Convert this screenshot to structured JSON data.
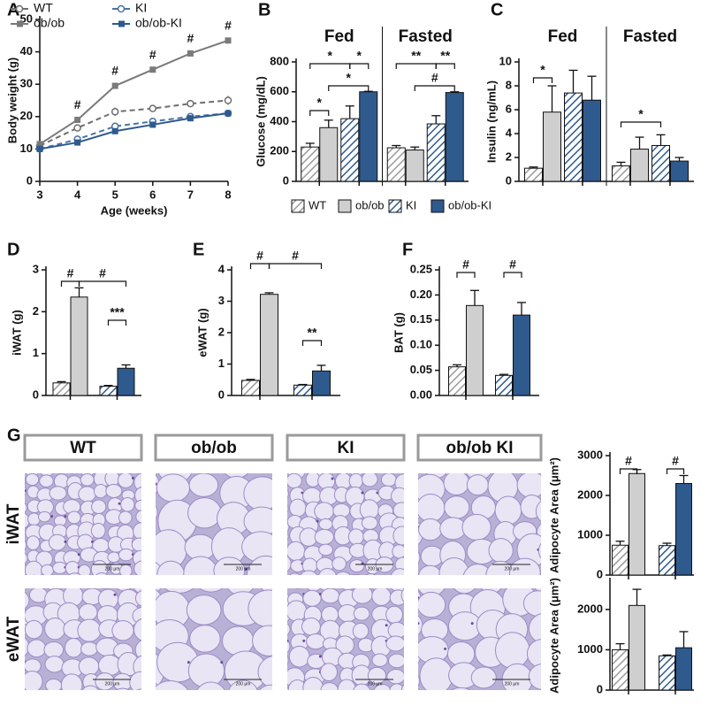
{
  "chart_data": [
    {
      "type": "line",
      "panel": "A",
      "xlabel": "Age (weeks)",
      "ylabel": "Body weight (g)",
      "x": [
        3,
        4,
        5,
        6,
        7,
        8
      ],
      "xlim": [
        3,
        8
      ],
      "xticks": [
        3,
        4,
        5,
        6,
        7,
        8
      ],
      "ylim": [
        0,
        50
      ],
      "yticks": [
        0,
        10,
        20,
        30,
        40,
        50
      ],
      "series": [
        {
          "name": "WT",
          "color": "#6e6e6e",
          "dashed": true,
          "marker": "circle-open",
          "values": [
            11,
            16.5,
            21.5,
            22.5,
            24,
            25
          ],
          "errors": [
            0.5,
            0.7,
            1.3,
            0.8,
            0.9,
            1.4
          ]
        },
        {
          "name": "ob/ob",
          "color": "#7a7a7a",
          "dashed": false,
          "marker": "square",
          "values": [
            11.5,
            19,
            29.5,
            34.5,
            39.5,
            43.5
          ],
          "errors": [
            0.4,
            0.6,
            0.5,
            0.6,
            0.6,
            0.8
          ]
        },
        {
          "name": "KI",
          "color": "#4a72a8",
          "dashed": true,
          "marker": "circle-open",
          "values": [
            10,
            13,
            17,
            18.5,
            20,
            21
          ],
          "errors": [
            0.4,
            0.5,
            0.6,
            0.6,
            0.6,
            0.7
          ]
        },
        {
          "name": "ob/ob-KI",
          "color": "#2e5a8e",
          "dashed": false,
          "marker": "square",
          "values": [
            10,
            12,
            15.5,
            17.5,
            19.5,
            21
          ],
          "errors": [
            0.4,
            0.5,
            0.6,
            0.5,
            0.6,
            0.6
          ]
        }
      ],
      "annotations": [
        {
          "text": "#"
        },
        {
          "text": "#"
        },
        {
          "text": "#"
        },
        {
          "text": "#"
        },
        {
          "text": "#"
        }
      ]
    },
    {
      "type": "bar",
      "panel": "B",
      "ylabel": "Glucose (mg/dL)",
      "groups": [
        "Fed",
        "Fasted"
      ],
      "ylim": [
        0,
        800
      ],
      "yticks": [
        0,
        200,
        400,
        600,
        800
      ],
      "legend": "bottom",
      "series": [
        {
          "name": "WT",
          "color": "#9a9a9a",
          "hatch": true,
          "values": [
            230,
            225
          ],
          "errors": [
            25,
            15
          ]
        },
        {
          "name": "ob/ob",
          "color": "#cfcfcf",
          "hatch": false,
          "values": [
            360,
            210
          ],
          "errors": [
            50,
            20
          ]
        },
        {
          "name": "KI",
          "color": "#2e5a8e",
          "hatch": true,
          "values": [
            420,
            385
          ],
          "errors": [
            85,
            55
          ]
        },
        {
          "name": "ob/ob-KI",
          "color": "#2e5a8e",
          "hatch": false,
          "values": [
            600,
            595
          ],
          "errors": [
            3,
            5
          ]
        }
      ],
      "annotations": [
        {
          "text": "*"
        },
        {
          "text": "*"
        },
        {
          "text": "*"
        },
        {
          "text": "*"
        },
        {
          "text": "**"
        },
        {
          "text": "**"
        },
        {
          "text": "#"
        }
      ]
    },
    {
      "type": "bar",
      "panel": "C",
      "ylabel": "Insulin (ng/mL)",
      "groups": [
        "Fed",
        "Fasted"
      ],
      "ylim": [
        0,
        10
      ],
      "yticks": [
        0,
        2,
        4,
        6,
        8,
        10
      ],
      "series": [
        {
          "color": "#9a9a9a",
          "hatch": true,
          "values": [
            1.1,
            1.3
          ],
          "errors": [
            0.1,
            0.3
          ]
        },
        {
          "color": "#cfcfcf",
          "hatch": false,
          "values": [
            5.8,
            2.7
          ],
          "errors": [
            2.2,
            1.0
          ]
        },
        {
          "color": "#2e5a8e",
          "hatch": true,
          "values": [
            7.4,
            3.0
          ],
          "errors": [
            1.9,
            0.9
          ]
        },
        {
          "color": "#2e5a8e",
          "hatch": false,
          "values": [
            6.8,
            1.7
          ],
          "errors": [
            2.0,
            0.3
          ]
        }
      ],
      "annotations": [
        {
          "text": "*"
        },
        {
          "text": "*"
        }
      ]
    },
    {
      "type": "bar",
      "panel": "D",
      "ylabel": "iWAT (g)",
      "ylim": [
        0,
        3
      ],
      "yticks": [
        0,
        1,
        2,
        3
      ],
      "series": [
        {
          "color": "#9a9a9a",
          "hatch": true,
          "values": [
            0.3
          ],
          "errors": [
            0.03
          ]
        },
        {
          "color": "#cfcfcf",
          "hatch": false,
          "values": [
            2.35
          ],
          "errors": [
            0.22
          ]
        },
        {
          "color": "#2e5a8e",
          "hatch": true,
          "values": [
            0.22
          ],
          "errors": [
            0.02
          ]
        },
        {
          "color": "#2e5a8e",
          "hatch": false,
          "values": [
            0.65
          ],
          "errors": [
            0.08
          ]
        }
      ],
      "annotations": [
        {
          "text": "#"
        },
        {
          "text": "#"
        },
        {
          "text": "***"
        }
      ]
    },
    {
      "type": "bar",
      "panel": "E",
      "ylabel": "eWAT (g)",
      "ylim": [
        0,
        4
      ],
      "yticks": [
        0,
        1,
        2,
        3,
        4
      ],
      "series": [
        {
          "color": "#9a9a9a",
          "hatch": true,
          "values": [
            0.48
          ],
          "errors": [
            0.03
          ]
        },
        {
          "color": "#cfcfcf",
          "hatch": false,
          "values": [
            3.22
          ],
          "errors": [
            0.05
          ]
        },
        {
          "color": "#2e5a8e",
          "hatch": true,
          "values": [
            0.33
          ],
          "errors": [
            0.02
          ]
        },
        {
          "color": "#2e5a8e",
          "hatch": false,
          "values": [
            0.78
          ],
          "errors": [
            0.18
          ]
        }
      ],
      "annotations": [
        {
          "text": "#"
        },
        {
          "text": "#"
        },
        {
          "text": "**"
        }
      ]
    },
    {
      "type": "bar",
      "panel": "F",
      "ylabel": "BAT (g)",
      "ylim": [
        0,
        0.25
      ],
      "yticks": [
        {
          "value": 0,
          "label": "0.00"
        },
        {
          "value": 0.05,
          "label": "0.05"
        },
        {
          "value": 0.1,
          "label": "0.10"
        },
        {
          "value": 0.15,
          "label": "0.15"
        },
        {
          "value": 0.2,
          "label": "0.20"
        },
        {
          "value": 0.25,
          "label": "0.25"
        }
      ],
      "series": [
        {
          "color": "#9a9a9a",
          "hatch": true,
          "values": [
            0.057
          ],
          "errors": [
            0.004
          ]
        },
        {
          "color": "#cfcfcf",
          "hatch": false,
          "values": [
            0.179
          ],
          "errors": [
            0.03
          ]
        },
        {
          "color": "#2e5a8e",
          "hatch": true,
          "values": [
            0.04
          ],
          "errors": [
            0.002
          ]
        },
        {
          "color": "#2e5a8e",
          "hatch": false,
          "values": [
            0.16
          ],
          "errors": [
            0.025
          ]
        }
      ],
      "annotations": [
        {
          "text": "#"
        },
        {
          "text": "#"
        }
      ]
    },
    {
      "type": "bar",
      "ylabel": "Adipocyte Area (μm²)",
      "ylim": [
        0,
        3000
      ],
      "yticks": [
        0,
        1000,
        2000,
        3000
      ],
      "series": [
        {
          "color": "#9a9a9a",
          "hatch": true,
          "values": [
            750
          ],
          "errors": [
            100
          ]
        },
        {
          "color": "#cfcfcf",
          "hatch": false,
          "values": [
            2550
          ],
          "errors": [
            100
          ]
        },
        {
          "color": "#2e5a8e",
          "hatch": true,
          "values": [
            740
          ],
          "errors": [
            60
          ]
        },
        {
          "color": "#2e5a8e",
          "hatch": false,
          "values": [
            2300
          ],
          "errors": [
            200
          ]
        }
      ],
      "annotations": [
        {
          "text": "#"
        },
        {
          "text": "#"
        }
      ]
    },
    {
      "type": "bar",
      "ylabel": "Adipocyte Area (μm²)",
      "ylim": [
        0,
        2700
      ],
      "yticks": [
        0,
        1000,
        2000
      ],
      "series": [
        {
          "color": "#9a9a9a",
          "hatch": true,
          "values": [
            1000
          ],
          "errors": [
            150
          ]
        },
        {
          "color": "#cfcfcf",
          "hatch": false,
          "values": [
            2100
          ],
          "errors": [
            400
          ]
        },
        {
          "color": "#2e5a8e",
          "hatch": true,
          "values": [
            850
          ],
          "errors": [
            20
          ]
        },
        {
          "color": "#2e5a8e",
          "hatch": false,
          "values": [
            1050
          ],
          "errors": [
            400
          ]
        }
      ],
      "annotations": []
    }
  ],
  "histology": {
    "panel": "G",
    "columns": [
      "WT",
      "ob/ob",
      "KI",
      "ob/ob KI"
    ],
    "rows": [
      "iWAT",
      "eWAT"
    ],
    "scale_label": "200 μm"
  }
}
